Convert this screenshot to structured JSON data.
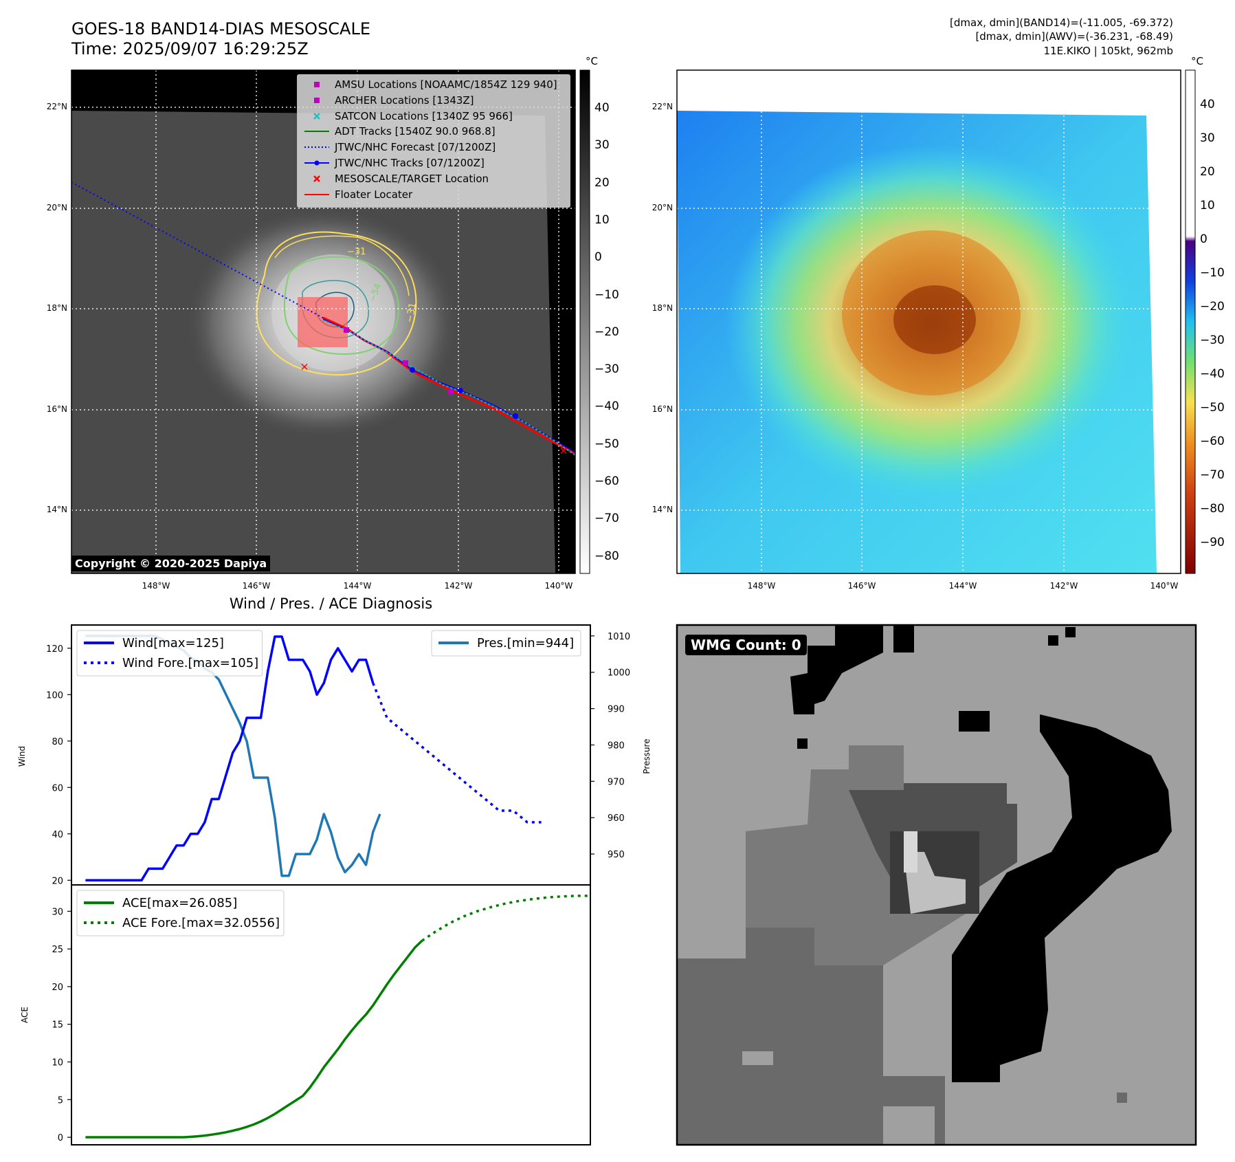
{
  "header": {
    "title_line1": "GOES-18 BAND14-DIAS MESOSCALE",
    "title_line2": "Time: 2025/09/07 16:29:25Z",
    "right_line1": "[dmax, dmin](BAND14)=(-11.005, -69.372)",
    "right_line2": "[dmax, dmin](AWV)=(-36.231, -68.49)",
    "right_line3": "11E.KIKO | 105kt, 962mb"
  },
  "map_axes": {
    "lon_labels": [
      "148°W",
      "146°W",
      "144°W",
      "142°W",
      "140°W"
    ],
    "lat_labels": [
      "22°N",
      "20°N",
      "18°N",
      "16°N",
      "14°N"
    ]
  },
  "panel_ir": {
    "copyright": "Copyright © 2020-2025 Dapiya",
    "contour_labels": [
      "-31",
      "-54",
      "-31"
    ],
    "legend": [
      {
        "label": "AMSU Locations [NOAAMC/1854Z 129 940]",
        "color": "#c000c0",
        "marker": "square"
      },
      {
        "label": "ARCHER Locations [1343Z]",
        "color": "#c000c0",
        "marker": "square"
      },
      {
        "label": "SATCON Locations [1340Z 95 966]",
        "color": "#20c0c0",
        "marker": "x"
      },
      {
        "label": "ADT Tracks [1540Z 90.0 968.8]",
        "color": "#008000",
        "marker": "line"
      },
      {
        "label": "JTWC/NHC Forecast [07/1200Z]",
        "color": "#0000ff",
        "marker": "dotted"
      },
      {
        "label": "JTWC/NHC Tracks [07/1200Z]",
        "color": "#0000ff",
        "marker": "line-dot"
      },
      {
        "label": "MESOSCALE/TARGET Location",
        "color": "#ff0000",
        "marker": "x"
      },
      {
        "label": "Floater Locater",
        "color": "#ff0000",
        "marker": "line"
      }
    ],
    "colorbar": {
      "unit": "°C",
      "ticks": [
        "40",
        "30",
        "20",
        "10",
        "0",
        "−10",
        "−20",
        "−30",
        "−40",
        "−50",
        "−60",
        "−70",
        "−80"
      ]
    }
  },
  "panel_wv": {
    "colorbar": {
      "unit": "°C",
      "ticks": [
        "40",
        "30",
        "20",
        "10",
        "0",
        "−10",
        "−20",
        "−30",
        "−40",
        "−50",
        "−60",
        "−70",
        "−80",
        "−90"
      ]
    }
  },
  "panel_wmg": {
    "badge": "WMG Count: 0"
  },
  "chart_data": [
    {
      "type": "line",
      "title": "Wind / Pres. / ACE Diagnosis",
      "ylabel": "Wind",
      "y2label": "Pressure",
      "ylim": [
        18,
        130
      ],
      "y2lim": [
        941.5,
        1013
      ],
      "yticks": [
        "20",
        "40",
        "60",
        "80",
        "100",
        "120"
      ],
      "y2ticks": [
        "950",
        "960",
        "970",
        "980",
        "990",
        "1000",
        "1010"
      ],
      "series": [
        {
          "name": "Wind[max=125]",
          "color": "#0000ff",
          "style": "solid",
          "values": [
            20,
            20,
            20,
            20,
            20,
            20,
            20,
            20,
            20,
            25,
            25,
            25,
            30,
            35,
            35,
            40,
            40,
            45,
            55,
            55,
            65,
            75,
            80,
            90,
            90,
            90,
            110,
            125,
            125,
            115,
            115,
            115,
            110,
            100,
            105,
            115,
            120,
            115,
            110,
            115,
            115,
            105
          ]
        },
        {
          "name": "Wind Fore.[max=105]",
          "color": "#0000ff",
          "style": "dotted",
          "x_start": 41,
          "step": 2,
          "values": [
            105,
            90,
            85,
            80,
            75,
            70,
            65,
            60,
            55,
            50,
            50,
            45,
            45
          ]
        },
        {
          "name": "Pres.[min=944]",
          "color": "#1f77b4",
          "style": "solid",
          "axis": "right",
          "values": [
            1010,
            1010,
            1010,
            1010,
            1010,
            1010,
            1010,
            1010,
            1010,
            1010,
            1010,
            1009,
            1008,
            1007,
            1006,
            1004,
            1003,
            1001,
            1000,
            998,
            994,
            990,
            986,
            981,
            971,
            971,
            971,
            960,
            944,
            944,
            950,
            950,
            950,
            954,
            961,
            956,
            949,
            945,
            947,
            950,
            947,
            956,
            961
          ]
        }
      ]
    },
    {
      "type": "line",
      "ylabel": "ACE",
      "ylim": [
        -1,
        33.5
      ],
      "yticks": [
        "0",
        "5",
        "10",
        "15",
        "20",
        "25",
        "30"
      ],
      "series": [
        {
          "name": "ACE[max=26.085]",
          "color": "#008000",
          "style": "solid",
          "values": [
            0,
            0,
            0,
            0,
            0,
            0,
            0,
            0,
            0,
            0,
            0,
            0,
            0,
            0,
            0,
            0.06,
            0.13,
            0.22,
            0.35,
            0.5,
            0.66,
            0.87,
            1.1,
            1.38,
            1.7,
            2.1,
            2.57,
            3.1,
            3.7,
            4.3,
            4.9,
            5.5,
            6.6,
            7.9,
            9.3,
            10.5,
            11.7,
            13.0,
            14.2,
            15.3,
            16.3,
            17.5,
            18.9,
            20.3,
            21.6,
            22.8,
            24.0,
            25.2,
            26.085
          ]
        },
        {
          "name": "ACE Fore.[max=32.0556]",
          "color": "#008000",
          "style": "dotted",
          "x_start": 48,
          "step": 2,
          "values": [
            26.085,
            27.35,
            28.45,
            29.35,
            30.05,
            30.6,
            31.05,
            31.4,
            31.65,
            31.85,
            31.98,
            32.05,
            32.0556
          ]
        }
      ]
    }
  ]
}
